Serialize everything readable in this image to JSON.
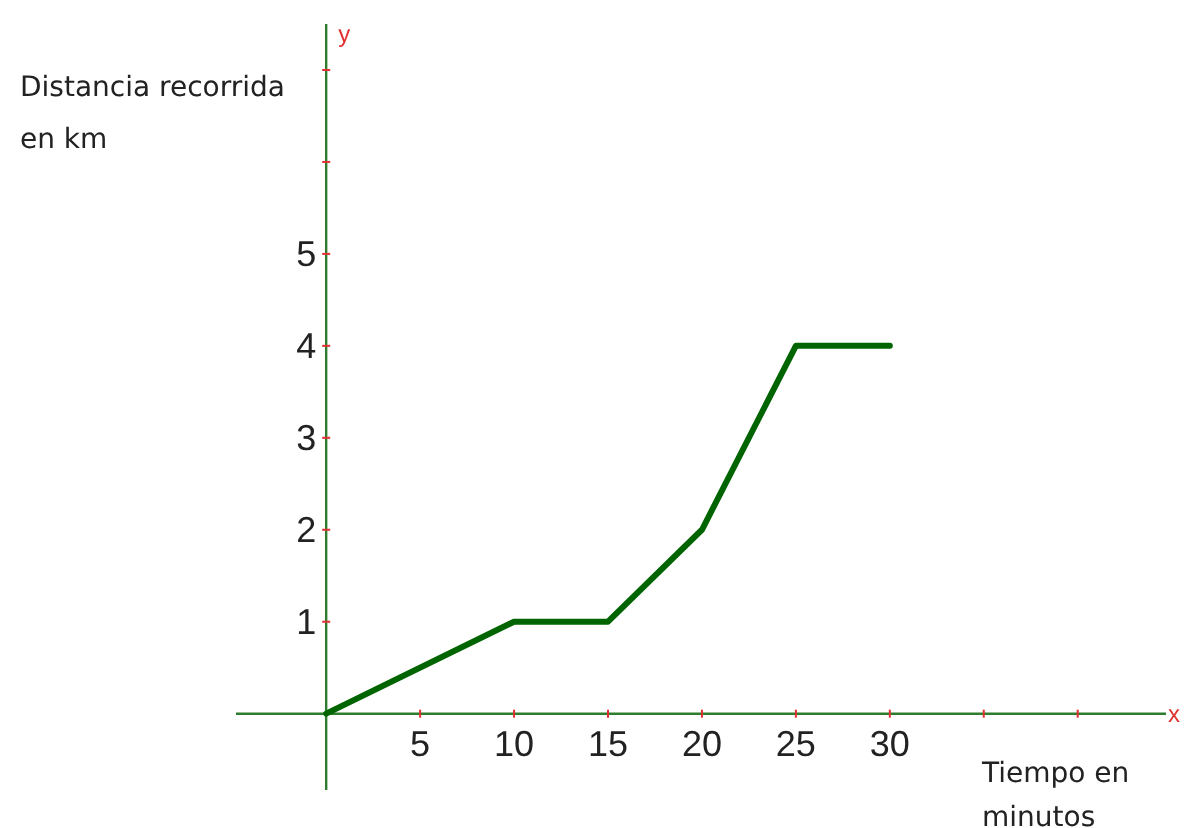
{
  "chart_data": {
    "type": "line",
    "xlabel": "Tiempo en\nminutos",
    "ylabel": "Distancia recorrida\nen km",
    "x": [
      0,
      10,
      15,
      20,
      25,
      30
    ],
    "series": [
      {
        "color": "#006400",
        "values": [
          0,
          1,
          1,
          2,
          4,
          4
        ]
      }
    ],
    "xlim": [
      -4.8,
      44.7
    ],
    "ylim": [
      -0.83,
      7.5
    ],
    "xticks": [
      5,
      10,
      15,
      20,
      25,
      30,
      {
        "value": 35,
        "label": null
      },
      {
        "value": 40,
        "label": null
      }
    ],
    "yticks": [
      1,
      2,
      3,
      4,
      5,
      {
        "value": 6,
        "label": null
      },
      {
        "value": 7,
        "label": null
      }
    ],
    "annotations": [
      "x",
      "y"
    ],
    "grid": false,
    "marker": "none",
    "line_style": "solid"
  }
}
